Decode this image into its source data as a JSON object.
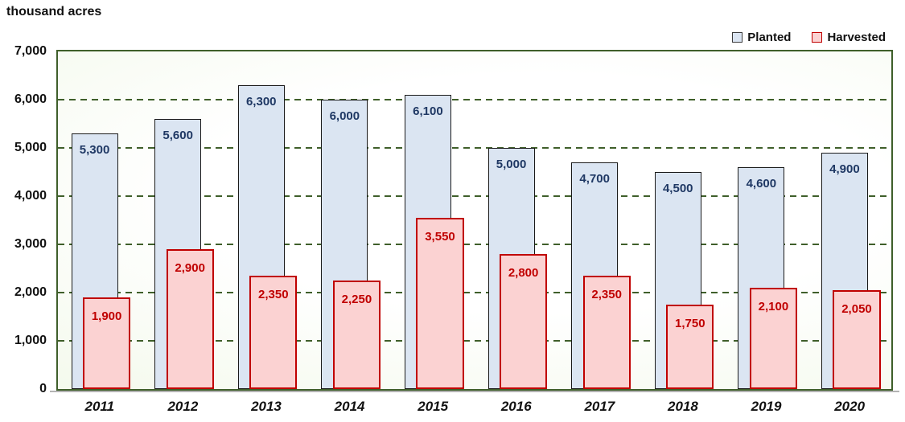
{
  "title": "thousand acres",
  "legend": {
    "items": [
      {
        "label": "Planted"
      },
      {
        "label": "Harvested"
      }
    ]
  },
  "colors": {
    "planted_fill": "#dbe5f2",
    "planted_border": "#1a1a1a",
    "planted_label": "#1f3864",
    "harvested_fill": "#fbd2d2",
    "harvested_border": "#c00000",
    "harvested_label": "#c00000",
    "grid_green": "#3f5f2a",
    "axis_gray": "#b3b3b3",
    "text": "#111111"
  },
  "chart_data": {
    "type": "bar",
    "categories": [
      "2011",
      "2012",
      "2013",
      "2014",
      "2015",
      "2016",
      "2017",
      "2018",
      "2019",
      "2020"
    ],
    "series": [
      {
        "name": "Planted",
        "values": [
          5300,
          5600,
          6300,
          6000,
          6100,
          5000,
          4700,
          4500,
          4600,
          4900
        ]
      },
      {
        "name": "Harvested",
        "values": [
          1900,
          2900,
          2350,
          2250,
          3550,
          2800,
          2350,
          1750,
          2100,
          2050
        ]
      }
    ],
    "title": "thousand acres",
    "xlabel": "",
    "ylabel": "thousand acres",
    "ylim": [
      0,
      7000
    ],
    "ytick_interval": 1000,
    "yticks": [
      "7,000",
      "6,000",
      "5,000",
      "4,000",
      "3,000",
      "2,000",
      "1,000",
      "0"
    ],
    "grid": "dashed-horizontal",
    "legend_position": "top-right",
    "data_labels": "inside-top"
  }
}
